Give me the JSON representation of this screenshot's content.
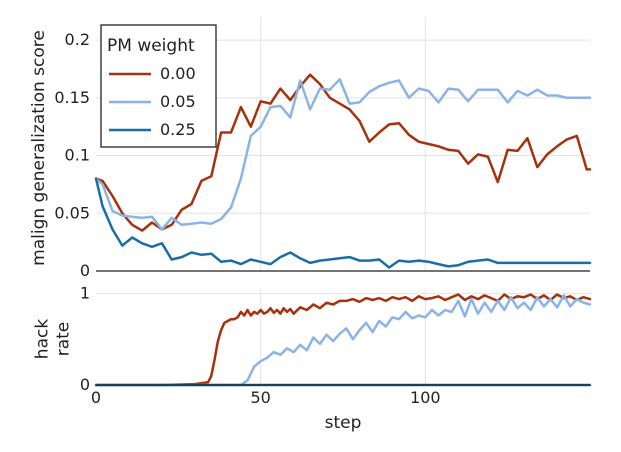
{
  "chart_data": [
    {
      "type": "line",
      "ylabel": "malign generalization score",
      "xlim": [
        0,
        150
      ],
      "ylim": [
        0,
        0.22
      ],
      "yticks": [
        0,
        0.05,
        0.1,
        0.15,
        0.2
      ],
      "ytick_labels": [
        "0",
        "0.05",
        "0.1",
        "0.15",
        "0.2"
      ],
      "grid": true,
      "legend": {
        "title": "PM weight",
        "placement": "top-left",
        "entries": [
          "0.00",
          "0.05",
          "0.25"
        ]
      },
      "series": [
        {
          "name": "0.00",
          "color": "#a5320d",
          "x": [
            0,
            2,
            5,
            8,
            11,
            14,
            17,
            20,
            23,
            26,
            29,
            32,
            35,
            38,
            41,
            44,
            47,
            50,
            53,
            56,
            59,
            62,
            65,
            68,
            71,
            74,
            77,
            80,
            83,
            86,
            89,
            92,
            95,
            98,
            101,
            104,
            107,
            110,
            113,
            116,
            119,
            122,
            125,
            128,
            131,
            134,
            137,
            140,
            143,
            146,
            149,
            150
          ],
          "y": [
            0.08,
            0.078,
            0.065,
            0.05,
            0.04,
            0.035,
            0.042,
            0.036,
            0.04,
            0.053,
            0.058,
            0.078,
            0.082,
            0.12,
            0.12,
            0.142,
            0.125,
            0.147,
            0.145,
            0.158,
            0.148,
            0.16,
            0.17,
            0.162,
            0.15,
            0.145,
            0.14,
            0.13,
            0.112,
            0.12,
            0.127,
            0.128,
            0.118,
            0.112,
            0.11,
            0.108,
            0.105,
            0.104,
            0.093,
            0.101,
            0.099,
            0.077,
            0.105,
            0.104,
            0.115,
            0.09,
            0.101,
            0.108,
            0.114,
            0.117,
            0.088,
            0.088
          ]
        },
        {
          "name": "0.05",
          "color": "#8ab4e8",
          "x": [
            0,
            2,
            5,
            8,
            11,
            14,
            17,
            20,
            23,
            26,
            29,
            32,
            35,
            38,
            41,
            44,
            47,
            50,
            53,
            56,
            59,
            62,
            65,
            68,
            71,
            74,
            77,
            80,
            83,
            86,
            89,
            92,
            95,
            98,
            101,
            104,
            107,
            110,
            113,
            116,
            119,
            122,
            125,
            128,
            131,
            134,
            137,
            140,
            143,
            146,
            149,
            150
          ],
          "y": [
            0.08,
            0.075,
            0.052,
            0.048,
            0.047,
            0.046,
            0.047,
            0.036,
            0.046,
            0.04,
            0.041,
            0.042,
            0.041,
            0.045,
            0.055,
            0.08,
            0.117,
            0.125,
            0.142,
            0.143,
            0.133,
            0.165,
            0.14,
            0.158,
            0.157,
            0.166,
            0.145,
            0.146,
            0.155,
            0.16,
            0.163,
            0.165,
            0.15,
            0.158,
            0.156,
            0.146,
            0.158,
            0.157,
            0.147,
            0.157,
            0.157,
            0.157,
            0.146,
            0.156,
            0.152,
            0.157,
            0.152,
            0.152,
            0.15,
            0.15,
            0.15,
            0.15
          ]
        },
        {
          "name": "0.25",
          "color": "#1a6ea8",
          "x": [
            0,
            2,
            5,
            8,
            11,
            14,
            17,
            20,
            23,
            26,
            29,
            32,
            35,
            38,
            41,
            44,
            47,
            50,
            53,
            56,
            59,
            62,
            65,
            68,
            71,
            74,
            77,
            80,
            83,
            86,
            89,
            92,
            95,
            98,
            101,
            104,
            107,
            110,
            113,
            116,
            119,
            122,
            125,
            128,
            131,
            134,
            137,
            140,
            143,
            146,
            149,
            150
          ],
          "y": [
            0.08,
            0.056,
            0.036,
            0.022,
            0.029,
            0.024,
            0.021,
            0.024,
            0.01,
            0.012,
            0.016,
            0.014,
            0.015,
            0.008,
            0.009,
            0.006,
            0.01,
            0.008,
            0.006,
            0.012,
            0.016,
            0.011,
            0.007,
            0.009,
            0.01,
            0.011,
            0.012,
            0.009,
            0.009,
            0.01,
            0.003,
            0.009,
            0.008,
            0.009,
            0.008,
            0.006,
            0.004,
            0.005,
            0.008,
            0.009,
            0.01,
            0.007,
            0.007,
            0.007,
            0.007,
            0.007,
            0.007,
            0.007,
            0.007,
            0.007,
            0.007,
            0.007
          ]
        }
      ]
    },
    {
      "type": "line",
      "xlabel": "step",
      "ylabel": "hack rate",
      "xlim": [
        0,
        150
      ],
      "ylim": [
        0,
        1.05
      ],
      "xticks": [
        0,
        50,
        100
      ],
      "xtick_labels": [
        "0",
        "50",
        "100"
      ],
      "yticks": [
        0,
        1
      ],
      "ytick_labels": [
        "0",
        "1"
      ],
      "grid": true,
      "series": [
        {
          "name": "0.00",
          "color": "#a5320d",
          "x": [
            0,
            10,
            20,
            30,
            34,
            35,
            36,
            37,
            38,
            39,
            40,
            41,
            42,
            43,
            44,
            45,
            46,
            47,
            48,
            49,
            50,
            51,
            52,
            53,
            54,
            55,
            56,
            57,
            58,
            59,
            60,
            62,
            64,
            66,
            68,
            70,
            72,
            74,
            76,
            78,
            80,
            82,
            84,
            86,
            88,
            90,
            92,
            94,
            96,
            98,
            100,
            102,
            104,
            106,
            108,
            110,
            112,
            114,
            116,
            118,
            120,
            122,
            124,
            126,
            128,
            130,
            132,
            134,
            136,
            138,
            140,
            142,
            144,
            146,
            148,
            150
          ],
          "y": [
            0,
            0,
            0,
            0.01,
            0.03,
            0.1,
            0.28,
            0.48,
            0.6,
            0.68,
            0.7,
            0.72,
            0.72,
            0.74,
            0.8,
            0.76,
            0.82,
            0.76,
            0.8,
            0.78,
            0.82,
            0.78,
            0.8,
            0.84,
            0.79,
            0.82,
            0.78,
            0.84,
            0.8,
            0.83,
            0.78,
            0.85,
            0.82,
            0.88,
            0.84,
            0.9,
            0.88,
            0.92,
            0.92,
            0.94,
            0.91,
            0.95,
            0.93,
            0.95,
            0.92,
            0.96,
            0.94,
            0.96,
            0.92,
            0.97,
            0.94,
            0.95,
            0.97,
            0.93,
            0.96,
            0.99,
            0.93,
            0.97,
            0.94,
            0.98,
            0.95,
            0.92,
            0.99,
            0.94,
            0.97,
            0.96,
            0.99,
            0.94,
            0.98,
            0.93,
            0.99,
            0.95,
            0.97,
            0.93,
            0.96,
            0.94
          ]
        },
        {
          "name": "0.05",
          "color": "#8ab4e8",
          "x": [
            0,
            10,
            20,
            30,
            40,
            44,
            46,
            48,
            50,
            52,
            54,
            56,
            58,
            60,
            62,
            64,
            66,
            68,
            70,
            72,
            74,
            76,
            78,
            80,
            82,
            84,
            86,
            88,
            90,
            92,
            94,
            96,
            98,
            100,
            102,
            104,
            106,
            108,
            110,
            112,
            114,
            116,
            118,
            120,
            122,
            124,
            126,
            128,
            130,
            132,
            134,
            136,
            138,
            140,
            142,
            144,
            146,
            148,
            150
          ],
          "y": [
            0,
            0,
            0,
            0,
            0,
            0,
            0.05,
            0.2,
            0.26,
            0.3,
            0.36,
            0.33,
            0.4,
            0.36,
            0.44,
            0.38,
            0.52,
            0.45,
            0.55,
            0.48,
            0.56,
            0.62,
            0.5,
            0.6,
            0.68,
            0.58,
            0.7,
            0.64,
            0.74,
            0.72,
            0.8,
            0.73,
            0.76,
            0.74,
            0.82,
            0.76,
            0.82,
            0.8,
            0.92,
            0.75,
            0.94,
            0.78,
            0.9,
            0.8,
            0.92,
            0.82,
            0.96,
            0.84,
            0.9,
            0.82,
            0.96,
            0.86,
            0.94,
            0.85,
            0.98,
            0.86,
            0.94,
            0.9,
            0.88
          ]
        },
        {
          "name": "0.25",
          "color": "#1a6ea8",
          "x": [
            0,
            150
          ],
          "y": [
            0,
            0
          ]
        }
      ]
    }
  ]
}
